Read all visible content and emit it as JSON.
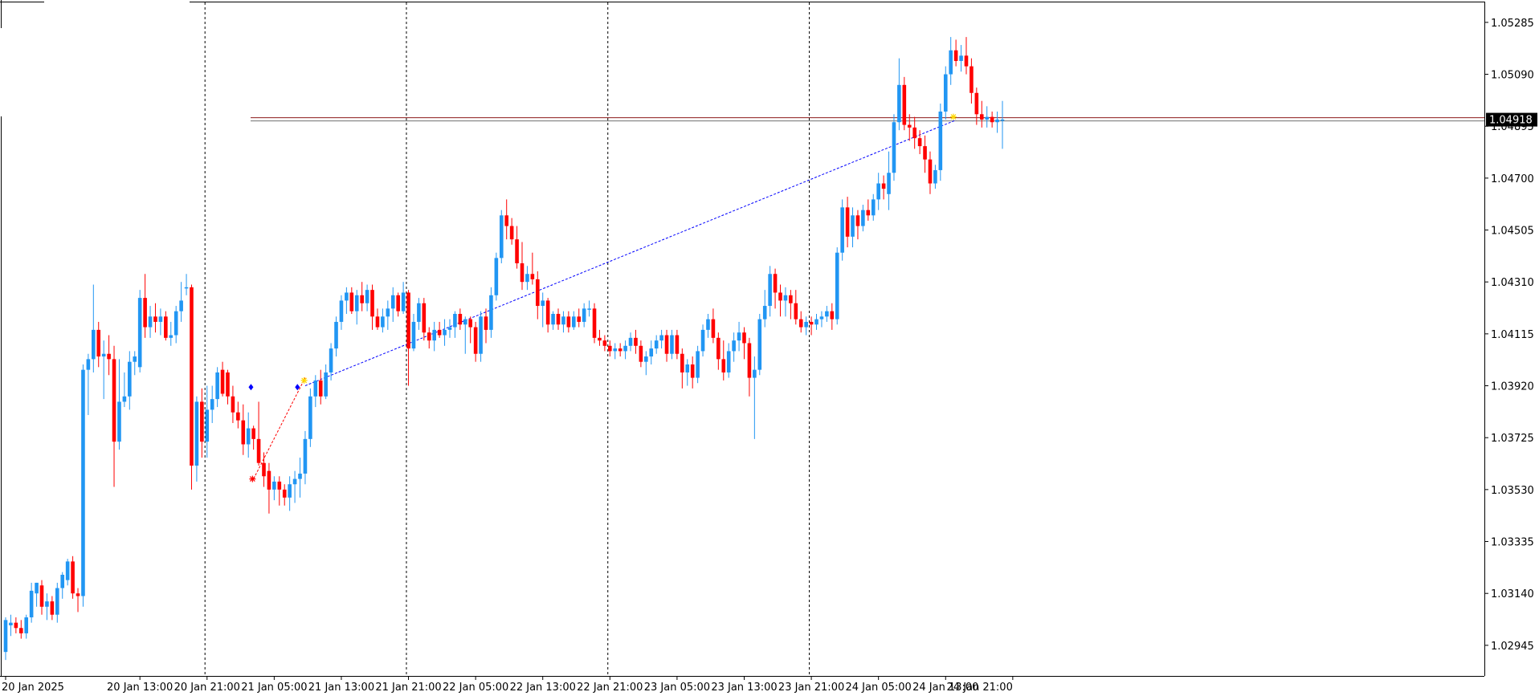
{
  "chart_data": {
    "type": "candlestick",
    "symbol": "",
    "timeframe": "H1",
    "colors": {
      "bull": "#2196f3",
      "bear": "#ff0000",
      "grid_separator": "#000000",
      "price_line": "#8b1a1a",
      "price_tag_bg": "#000000",
      "trend_line": "#0000ff",
      "signal_line": "#ff0000"
    },
    "y_axis": {
      "range": [
        1.0283,
        1.0536
      ],
      "ticks": [
        "1.05285",
        "1.05090",
        "1.04895",
        "1.04700",
        "1.04505",
        "1.04310",
        "1.04115",
        "1.03920",
        "1.03725",
        "1.03530",
        "1.03335",
        "1.03140",
        "1.02945"
      ]
    },
    "x_axis": {
      "ticks": [
        {
          "label": "20 Jan 2025",
          "bar": 0
        },
        {
          "label": "20 Jan 13:00",
          "bar": 26
        },
        {
          "label": "20 Jan 21:00",
          "bar": 39
        },
        {
          "label": "21 Jan 05:00",
          "bar": 52
        },
        {
          "label": "21 Jan 13:00",
          "bar": 65
        },
        {
          "label": "21 Jan 21:00",
          "bar": 78
        },
        {
          "label": "22 Jan 05:00",
          "bar": 91
        },
        {
          "label": "22 Jan 13:00",
          "bar": 104
        },
        {
          "label": "22 Jan 21:00",
          "bar": 117
        },
        {
          "label": "23 Jan 05:00",
          "bar": 130
        },
        {
          "label": "23 Jan 13:00",
          "bar": 143
        },
        {
          "label": "23 Jan 21:00",
          "bar": 156
        },
        {
          "label": "24 Jan 05:00",
          "bar": 169
        },
        {
          "label": "24 Jan 13:00",
          "bar": 182
        },
        {
          "label": "24 Jan 21:00",
          "bar": 195
        }
      ]
    },
    "day_separators_bar": [
      38.6,
      77.6,
      116.6,
      155.6
    ],
    "current_price": "1.04918",
    "current_price_value": 1.04918,
    "trend_line": {
      "from": {
        "bar": 58,
        "price": 1.0392
      },
      "to": {
        "bar": 184,
        "price": 1.04918
      }
    },
    "signal_line": {
      "from": {
        "bar": 48,
        "price": 1.0357
      },
      "to": {
        "bar": 58,
        "price": 1.0395
      }
    },
    "markers": [
      {
        "bar": 47.5,
        "price": 1.03915,
        "shape": "diamond",
        "color": "#0000ff"
      },
      {
        "bar": 56.5,
        "price": 1.03915,
        "shape": "diamond",
        "color": "#0000ff"
      },
      {
        "bar": 47.8,
        "price": 1.0357,
        "shape": "star",
        "color": "#ff0000"
      },
      {
        "bar": 57.8,
        "price": 1.0394,
        "shape": "star",
        "color": "#ffd700"
      },
      {
        "bar": 183.5,
        "price": 1.0493,
        "shape": "star",
        "color": "#ffd700"
      }
    ],
    "candles": [
      [
        1.0292,
        1.0305,
        1.0289,
        1.0304
      ],
      [
        1.0302,
        1.0306,
        1.0298,
        1.0303
      ],
      [
        1.0303,
        1.0305,
        1.0299,
        1.0301
      ],
      [
        1.0301,
        1.0304,
        1.0297,
        1.0299
      ],
      [
        1.0299,
        1.0306,
        1.0297,
        1.0305
      ],
      [
        1.0305,
        1.0318,
        1.0303,
        1.0315
      ],
      [
        1.0314,
        1.0318,
        1.0309,
        1.0318
      ],
      [
        1.0317,
        1.0319,
        1.0306,
        1.0309
      ],
      [
        1.0309,
        1.0314,
        1.0304,
        1.0311
      ],
      [
        1.0311,
        1.0313,
        1.0304,
        1.0306
      ],
      [
        1.0306,
        1.0318,
        1.0303,
        1.0316
      ],
      [
        1.0316,
        1.0322,
        1.0312,
        1.0321
      ],
      [
        1.0319,
        1.0327,
        1.0317,
        1.0326
      ],
      [
        1.0326,
        1.0328,
        1.0312,
        1.0314
      ],
      [
        1.0314,
        1.0316,
        1.0307,
        1.0313
      ],
      [
        1.0313,
        1.04,
        1.0309,
        1.0398
      ],
      [
        1.0398,
        1.0404,
        1.0381,
        1.0402
      ],
      [
        1.0402,
        1.043,
        1.0397,
        1.0413
      ],
      [
        1.0413,
        1.0416,
        1.0399,
        1.0403
      ],
      [
        1.0403,
        1.0409,
        1.0387,
        1.0404
      ],
      [
        1.0404,
        1.0411,
        1.0396,
        1.0402
      ],
      [
        1.0402,
        1.0407,
        1.0354,
        1.0371
      ],
      [
        1.0371,
        1.0402,
        1.0368,
        1.0386
      ],
      [
        1.0386,
        1.0397,
        1.0384,
        1.0388
      ],
      [
        1.0388,
        1.0405,
        1.0383,
        1.0401
      ],
      [
        1.0401,
        1.0405,
        1.0396,
        1.0403
      ],
      [
        1.0399,
        1.0428,
        1.0397,
        1.0425
      ],
      [
        1.0425,
        1.0434,
        1.041,
        1.0414
      ],
      [
        1.0414,
        1.0422,
        1.041,
        1.0418
      ],
      [
        1.0418,
        1.0423,
        1.0412,
        1.0416
      ],
      [
        1.0416,
        1.0421,
        1.0411,
        1.0418
      ],
      [
        1.0418,
        1.042,
        1.0409,
        1.041
      ],
      [
        1.041,
        1.0416,
        1.0407,
        1.0411
      ],
      [
        1.0411,
        1.0422,
        1.0408,
        1.042
      ],
      [
        1.042,
        1.0431,
        1.0416,
        1.0424
      ],
      [
        1.0429,
        1.0434,
        1.0426,
        1.0429
      ],
      [
        1.0429,
        1.043,
        1.0353,
        1.0362
      ],
      [
        1.0362,
        1.0388,
        1.0356,
        1.0386
      ],
      [
        1.0386,
        1.0391,
        1.0365,
        1.0371
      ],
      [
        1.0371,
        1.0392,
        1.0365,
        1.0383
      ],
      [
        1.0383,
        1.0392,
        1.0378,
        1.0387
      ],
      [
        1.0387,
        1.0399,
        1.0384,
        1.0397
      ],
      [
        1.0398,
        1.0401,
        1.0388,
        1.0389
      ],
      [
        1.0397,
        1.0398,
        1.0385,
        1.0388
      ],
      [
        1.0388,
        1.0392,
        1.0378,
        1.0382
      ],
      [
        1.0382,
        1.0386,
        1.0376,
        1.0379
      ],
      [
        1.0379,
        1.0385,
        1.0366,
        1.037
      ],
      [
        1.037,
        1.0382,
        1.0365,
        1.0376
      ],
      [
        1.0376,
        1.0377,
        1.0368,
        1.0372
      ],
      [
        1.0372,
        1.0386,
        1.0362,
        1.0363
      ],
      [
        1.0363,
        1.0367,
        1.0354,
        1.0358
      ],
      [
        1.036,
        1.0363,
        1.0344,
        1.0353
      ],
      [
        1.0353,
        1.0358,
        1.0349,
        1.0356
      ],
      [
        1.0356,
        1.0358,
        1.0347,
        1.0353
      ],
      [
        1.0353,
        1.0355,
        1.0347,
        1.035
      ],
      [
        1.035,
        1.0358,
        1.0345,
        1.0355
      ],
      [
        1.0355,
        1.036,
        1.0348,
        1.0357
      ],
      [
        1.0357,
        1.0365,
        1.035,
        1.0359
      ],
      [
        1.0359,
        1.0375,
        1.0355,
        1.0372
      ],
      [
        1.0372,
        1.0391,
        1.0369,
        1.0388
      ],
      [
        1.0388,
        1.0396,
        1.0384,
        1.0394
      ],
      [
        1.0394,
        1.0398,
        1.0385,
        1.0388
      ],
      [
        1.0388,
        1.04,
        1.0387,
        1.0397
      ],
      [
        1.0397,
        1.0408,
        1.0394,
        1.0406
      ],
      [
        1.0406,
        1.0418,
        1.0403,
        1.0416
      ],
      [
        1.0416,
        1.0426,
        1.0413,
        1.0424
      ],
      [
        1.0424,
        1.0429,
        1.0419,
        1.0427
      ],
      [
        1.0427,
        1.0429,
        1.0419,
        1.042
      ],
      [
        1.042,
        1.0428,
        1.0415,
        1.0426
      ],
      [
        1.0426,
        1.0431,
        1.042,
        1.0423
      ],
      [
        1.0423,
        1.043,
        1.042,
        1.0428
      ],
      [
        1.0428,
        1.043,
        1.0413,
        1.0418
      ],
      [
        1.0418,
        1.0421,
        1.0413,
        1.0414
      ],
      [
        1.0414,
        1.0421,
        1.0412,
        1.0418
      ],
      [
        1.0418,
        1.0424,
        1.0413,
        1.0421
      ],
      [
        1.0421,
        1.0429,
        1.0416,
        1.0426
      ],
      [
        1.0426,
        1.0427,
        1.0418,
        1.042
      ],
      [
        1.042,
        1.0431,
        1.0419,
        1.0427
      ],
      [
        1.0427,
        1.0428,
        1.0392,
        1.0406
      ],
      [
        1.0406,
        1.0419,
        1.0405,
        1.0416
      ],
      [
        1.0416,
        1.0425,
        1.0413,
        1.0423
      ],
      [
        1.0423,
        1.0425,
        1.0409,
        1.0412
      ],
      [
        1.0412,
        1.0414,
        1.0406,
        1.0409
      ],
      [
        1.0409,
        1.0416,
        1.0405,
        1.0413
      ],
      [
        1.0413,
        1.0416,
        1.041,
        1.0411
      ],
      [
        1.0411,
        1.0417,
        1.0407,
        1.0413
      ],
      [
        1.0413,
        1.0417,
        1.041,
        1.0414
      ],
      [
        1.0414,
        1.042,
        1.041,
        1.0419
      ],
      [
        1.0419,
        1.0421,
        1.0413,
        1.0415
      ],
      [
        1.0415,
        1.0418,
        1.0404,
        1.0417
      ],
      [
        1.0417,
        1.0418,
        1.0408,
        1.0414
      ],
      [
        1.0414,
        1.0416,
        1.0401,
        1.0404
      ],
      [
        1.0404,
        1.042,
        1.0401,
        1.0418
      ],
      [
        1.0418,
        1.0421,
        1.0408,
        1.0413
      ],
      [
        1.0413,
        1.0429,
        1.041,
        1.0426
      ],
      [
        1.0426,
        1.0442,
        1.0424,
        1.044
      ],
      [
        1.044,
        1.0458,
        1.0438,
        1.0456
      ],
      [
        1.0456,
        1.0462,
        1.0447,
        1.0452
      ],
      [
        1.0452,
        1.0455,
        1.0445,
        1.0447
      ],
      [
        1.0447,
        1.0452,
        1.0436,
        1.0438
      ],
      [
        1.0438,
        1.0446,
        1.0428,
        1.0431
      ],
      [
        1.0431,
        1.0437,
        1.0428,
        1.0434
      ],
      [
        1.0434,
        1.0442,
        1.043,
        1.0432
      ],
      [
        1.0432,
        1.0435,
        1.0417,
        1.0422
      ],
      [
        1.0422,
        1.0427,
        1.0414,
        1.0424
      ],
      [
        1.0424,
        1.0425,
        1.0412,
        1.0415
      ],
      [
        1.0415,
        1.042,
        1.0413,
        1.0419
      ],
      [
        1.0419,
        1.0421,
        1.0413,
        1.0415
      ],
      [
        1.0415,
        1.042,
        1.0412,
        1.0418
      ],
      [
        1.0418,
        1.042,
        1.0412,
        1.0414
      ],
      [
        1.0414,
        1.042,
        1.0413,
        1.0418
      ],
      [
        1.0418,
        1.0421,
        1.0414,
        1.0416
      ],
      [
        1.0416,
        1.0423,
        1.0414,
        1.0421
      ],
      [
        1.0421,
        1.0424,
        1.0418,
        1.0421
      ],
      [
        1.0421,
        1.0423,
        1.0408,
        1.041
      ],
      [
        1.041,
        1.0413,
        1.0407,
        1.0409
      ],
      [
        1.0409,
        1.0411,
        1.0405,
        1.0407
      ],
      [
        1.0407,
        1.0409,
        1.0403,
        1.0405
      ],
      [
        1.0405,
        1.0408,
        1.0402,
        1.0406
      ],
      [
        1.0406,
        1.0408,
        1.0403,
        1.0405
      ],
      [
        1.0405,
        1.0409,
        1.0402,
        1.0407
      ],
      [
        1.0407,
        1.0412,
        1.0405,
        1.041
      ],
      [
        1.041,
        1.0413,
        1.0404,
        1.0407
      ],
      [
        1.0407,
        1.0409,
        1.0399,
        1.0401
      ],
      [
        1.0401,
        1.0405,
        1.0396,
        1.0403
      ],
      [
        1.0403,
        1.0409,
        1.04,
        1.0406
      ],
      [
        1.0406,
        1.0411,
        1.0404,
        1.0409
      ],
      [
        1.0409,
        1.0413,
        1.0406,
        1.0411
      ],
      [
        1.0411,
        1.0413,
        1.0401,
        1.0404
      ],
      [
        1.0404,
        1.0413,
        1.0402,
        1.0411
      ],
      [
        1.0411,
        1.0413,
        1.0402,
        1.0404
      ],
      [
        1.0404,
        1.0406,
        1.0391,
        1.0397
      ],
      [
        1.0397,
        1.0402,
        1.0392,
        1.04
      ],
      [
        1.04,
        1.0403,
        1.0391,
        1.0395
      ],
      [
        1.0395,
        1.0407,
        1.0393,
        1.0405
      ],
      [
        1.0405,
        1.0415,
        1.0403,
        1.0413
      ],
      [
        1.0413,
        1.0419,
        1.041,
        1.0417
      ],
      [
        1.0417,
        1.0421,
        1.0408,
        1.041
      ],
      [
        1.041,
        1.0412,
        1.0398,
        1.0402
      ],
      [
        1.0402,
        1.0409,
        1.0394,
        1.0397
      ],
      [
        1.0397,
        1.0408,
        1.0395,
        1.0405
      ],
      [
        1.0405,
        1.0412,
        1.0401,
        1.0409
      ],
      [
        1.0409,
        1.0416,
        1.0405,
        1.0412
      ],
      [
        1.0412,
        1.0414,
        1.0402,
        1.0408
      ],
      [
        1.0408,
        1.041,
        1.0388,
        1.0395
      ],
      [
        1.0395,
        1.0403,
        1.0372,
        1.0398
      ],
      [
        1.0398,
        1.0419,
        1.0396,
        1.0417
      ],
      [
        1.0417,
        1.0428,
        1.0414,
        1.0422
      ],
      [
        1.0422,
        1.0437,
        1.0418,
        1.0434
      ],
      [
        1.0434,
        1.0436,
        1.0421,
        1.0427
      ],
      [
        1.0427,
        1.043,
        1.0418,
        1.0424
      ],
      [
        1.0424,
        1.0429,
        1.0418,
        1.0426
      ],
      [
        1.0426,
        1.0428,
        1.0417,
        1.0423
      ],
      [
        1.0423,
        1.0428,
        1.0415,
        1.0417
      ],
      [
        1.0417,
        1.042,
        1.0412,
        1.0414
      ],
      [
        1.0414,
        1.0418,
        1.0411,
        1.0416
      ],
      [
        1.0416,
        1.0418,
        1.0411,
        1.0415
      ],
      [
        1.0415,
        1.0419,
        1.0413,
        1.0417
      ],
      [
        1.0417,
        1.042,
        1.0414,
        1.0418
      ],
      [
        1.0418,
        1.0422,
        1.0416,
        1.042
      ],
      [
        1.042,
        1.0423,
        1.0413,
        1.0417
      ],
      [
        1.0417,
        1.0444,
        1.0415,
        1.0442
      ],
      [
        1.0442,
        1.0462,
        1.0439,
        1.0459
      ],
      [
        1.0459,
        1.0463,
        1.0444,
        1.0448
      ],
      [
        1.0448,
        1.0459,
        1.0444,
        1.0456
      ],
      [
        1.0456,
        1.0458,
        1.0447,
        1.0452
      ],
      [
        1.0452,
        1.046,
        1.045,
        1.0458
      ],
      [
        1.0458,
        1.0462,
        1.0454,
        1.0456
      ],
      [
        1.0456,
        1.0464,
        1.0454,
        1.0462
      ],
      [
        1.0462,
        1.0472,
        1.0458,
        1.0468
      ],
      [
        1.0468,
        1.0471,
        1.0462,
        1.0466
      ],
      [
        1.0464,
        1.048,
        1.0458,
        1.0472
      ],
      [
        1.0472,
        1.0494,
        1.0469,
        1.0491
      ],
      [
        1.0491,
        1.0515,
        1.0488,
        1.0505
      ],
      [
        1.0505,
        1.0508,
        1.0488,
        1.049
      ],
      [
        1.049,
        1.0494,
        1.0484,
        1.0489
      ],
      [
        1.0489,
        1.0493,
        1.0481,
        1.0485
      ],
      [
        1.0485,
        1.0488,
        1.0479,
        1.0482
      ],
      [
        1.0482,
        1.0486,
        1.0472,
        1.0477
      ],
      [
        1.0477,
        1.048,
        1.0464,
        1.0468
      ],
      [
        1.0468,
        1.0475,
        1.0466,
        1.0473
      ],
      [
        1.0473,
        1.0498,
        1.0469,
        1.0495
      ],
      [
        1.0495,
        1.0512,
        1.0492,
        1.0509
      ],
      [
        1.0509,
        1.0523,
        1.0505,
        1.0518
      ],
      [
        1.0518,
        1.0522,
        1.0512,
        1.0514
      ],
      [
        1.0514,
        1.052,
        1.051,
        1.0516
      ],
      [
        1.0516,
        1.0523,
        1.0509,
        1.0512
      ],
      [
        1.0512,
        1.0515,
        1.0498,
        1.0502
      ],
      [
        1.0502,
        1.0504,
        1.049,
        1.0494
      ],
      [
        1.0494,
        1.0499,
        1.0489,
        1.0492
      ],
      [
        1.0492,
        1.0497,
        1.0489,
        1.0493
      ],
      [
        1.0493,
        1.0495,
        1.0489,
        1.0491
      ],
      [
        1.0491,
        1.0495,
        1.0487,
        1.0492
      ],
      [
        1.0492,
        1.0499,
        1.0481,
        1.0492
      ]
    ]
  }
}
